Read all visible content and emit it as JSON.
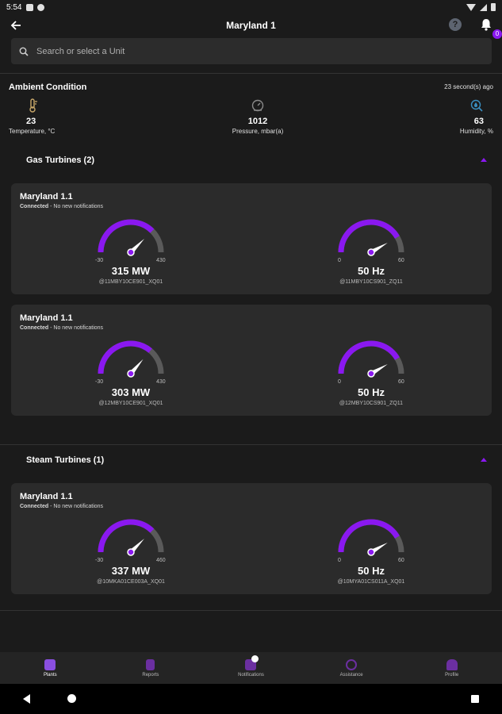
{
  "status_bar": {
    "time": "5:54"
  },
  "app_bar": {
    "title": "Maryland 1",
    "help_label": "?",
    "notification_count": "0"
  },
  "search": {
    "placeholder": "Search or select a Unit"
  },
  "ambient": {
    "title": "Ambient Condition",
    "updated": "23 second(s) ago",
    "temperature": {
      "value": "23",
      "label": "Temperature, °C"
    },
    "pressure": {
      "value": "1012",
      "label": "Pressure, mbar(a)"
    },
    "humidity": {
      "value": "63",
      "label": "Humidity, %"
    }
  },
  "sections": [
    {
      "title": "Gas Turbines (2)",
      "units": [
        {
          "name": "Maryland 1.1",
          "status_bold": "Connected",
          "status_rest": " - No new notifications",
          "power": {
            "min": "-30",
            "max": "430",
            "value": 315,
            "display": "315 MW",
            "tag": "@11MBY10CE901_XQ01"
          },
          "freq": {
            "min": "0",
            "max": "60",
            "value": 50,
            "display": "50 Hz",
            "tag": "@11MBY10CS901_ZQ11"
          }
        },
        {
          "name": "Maryland 1.1",
          "status_bold": "Connected",
          "status_rest": " - No new notifications",
          "power": {
            "min": "-30",
            "max": "430",
            "value": 303,
            "display": "303 MW",
            "tag": "@12MBY10CE901_XQ01"
          },
          "freq": {
            "min": "0",
            "max": "60",
            "value": 50,
            "display": "50 Hz",
            "tag": "@12MBY10CS901_ZQ11"
          }
        }
      ]
    },
    {
      "title": "Steam Turbines (1)",
      "units": [
        {
          "name": "Maryland 1.1",
          "status_bold": "Connected",
          "status_rest": " - No new notifications",
          "power": {
            "min": "-30",
            "max": "460",
            "value": 337,
            "display": "337 MW",
            "tag": "@10MKA01CE003A_XQ01"
          },
          "freq": {
            "min": "0",
            "max": "60",
            "value": 50,
            "display": "50 Hz",
            "tag": "@10MYA01CS011A_XQ01"
          }
        }
      ]
    }
  ],
  "bottom_nav": [
    {
      "label": "Plants",
      "icon": "factory-icon",
      "active": true
    },
    {
      "label": "Reports",
      "icon": "report-icon",
      "active": false
    },
    {
      "label": "Notifications",
      "icon": "notification-icon",
      "active": false
    },
    {
      "label": "Assistance",
      "icon": "headset-icon",
      "active": false
    },
    {
      "label": "Profile",
      "icon": "person-icon",
      "active": false
    }
  ],
  "colors": {
    "accent": "#8a18f0",
    "track": "#5a5a5a",
    "card": "#2b2b2b",
    "background": "#1b1b1b"
  }
}
